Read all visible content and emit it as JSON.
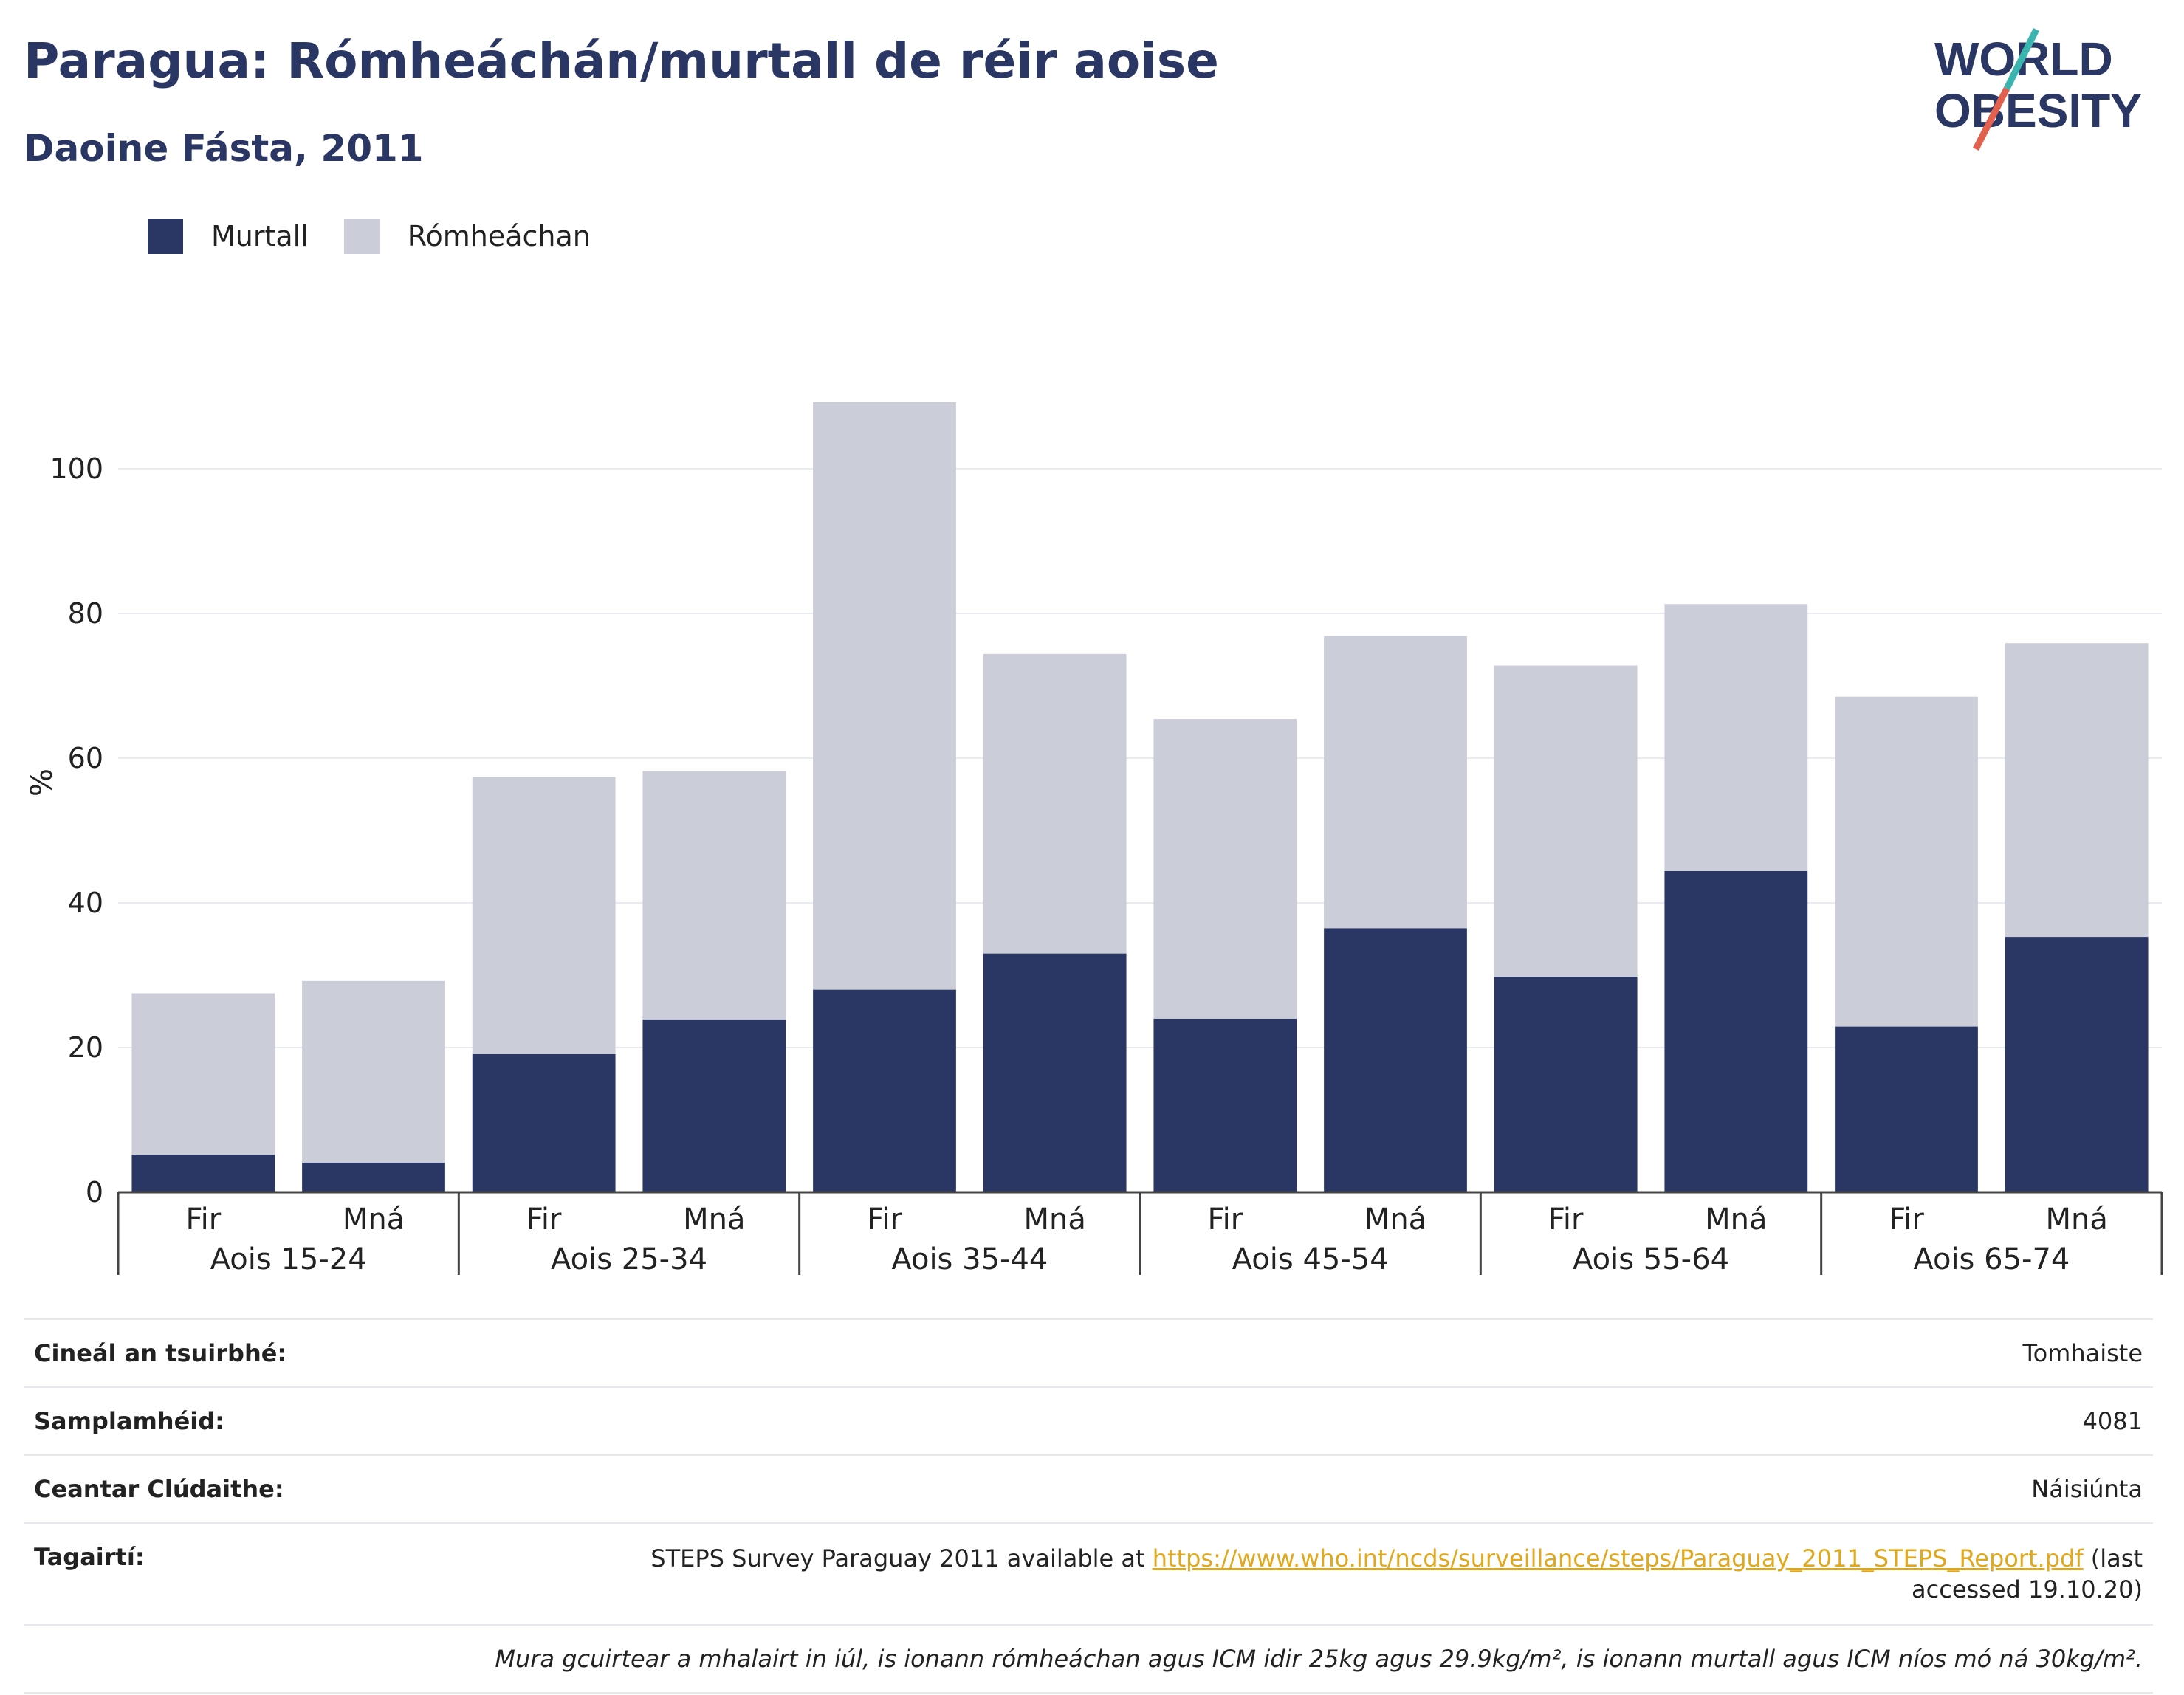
{
  "header": {
    "title": "Paragua: Rómheáchán/murtall de réir aoise",
    "subtitle": "Daoine Fásta, 2011",
    "logo_line1": "WORLD",
    "logo_line2": "OBESITY"
  },
  "colors": {
    "murtall": "#2a3663",
    "romheachan": "#cbcdd9",
    "title": "#2a3663",
    "link": "#e0a81e",
    "logo_slash_teal": "#3ab5b0",
    "logo_slash_red": "#e2604e"
  },
  "chart_data": {
    "type": "bar",
    "stacked": true,
    "ylabel": "%",
    "xlabel": "",
    "ylim": [
      0,
      110
    ],
    "yticks": [
      0,
      20,
      40,
      60,
      80,
      100
    ],
    "grid": true,
    "legend_position": "top-left",
    "groups": [
      "Aois 15-24",
      "Aois 25-34",
      "Aois 35-44",
      "Aois 45-54",
      "Aois 55-64",
      "Aois 65-74"
    ],
    "categories": [
      "Fir",
      "Mná",
      "Fir",
      "Mná",
      "Fir",
      "Mná",
      "Fir",
      "Mná",
      "Fir",
      "Mná",
      "Fir",
      "Mná"
    ],
    "series": [
      {
        "name": "Murtall",
        "values": [
          5.2,
          4.1,
          19.1,
          23.9,
          28.0,
          33.0,
          24.0,
          36.5,
          29.8,
          44.4,
          22.9,
          35.3
        ]
      },
      {
        "name": "Rómheáchan",
        "values": [
          22.3,
          25.1,
          38.3,
          34.3,
          81.2,
          41.4,
          41.4,
          40.4,
          43.0,
          36.9,
          45.6,
          40.6
        ]
      }
    ]
  },
  "info": {
    "survey_type_label": "Cineál an tsuirbhé:",
    "survey_type_value": "Tomhaiste",
    "sample_label": "Samplamhéid:",
    "sample_value": "4081",
    "area_label": "Ceantar Clúdaithe:",
    "area_value": "Náisiúnta",
    "ref_label": "Tagairtí:",
    "ref_text_before": "STEPS Survey Paraguay 2011 available at ",
    "ref_url": "https://www.who.int/ncds/surveillance/steps/Paraguay_2011_STEPS_Report.pdf",
    "ref_text_after": " (last accessed 19.10.20)",
    "note": "Mura gcuirtear a mhalairt in iúl, is ionann rómheáchan agus ICM idir 25kg agus 29.9kg/m², is ionann murtall agus ICM níos mó ná 30kg/m²."
  }
}
